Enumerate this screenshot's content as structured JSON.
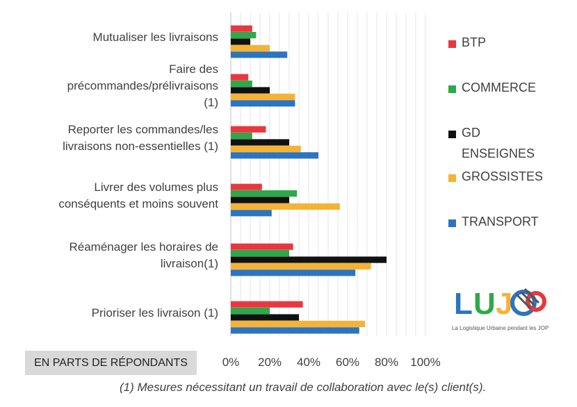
{
  "chart_data": {
    "type": "bar",
    "orientation": "horizontal",
    "categories": [
      "Mutualiser les livraisons",
      "Faire des\nprécommandes/prélivraisons\n(1)",
      "Reporter les commandes/les\nlivraisons non-essentielles (1)",
      "Livrer des volumes plus\nconséquents et moins souvent",
      "Réaménager les horaires de\nlivraison(1)",
      "Prioriser les livraison (1)"
    ],
    "series": [
      {
        "name": "BTP",
        "color": "#e8383d",
        "values": [
          11,
          9,
          18,
          16,
          32,
          37
        ]
      },
      {
        "name": "COMMERCE",
        "color": "#2ea84a",
        "values": [
          13,
          11,
          11,
          34,
          30,
          20
        ]
      },
      {
        "name": "GD\nENSEIGNES",
        "color": "#111111",
        "values": [
          10,
          20,
          30,
          30,
          80,
          35
        ]
      },
      {
        "name": "GROSSISTES",
        "color": "#f5b335",
        "values": [
          20,
          33,
          36,
          56,
          72,
          69
        ]
      },
      {
        "name": "TRANSPORT",
        "color": "#2d74c0",
        "values": [
          29,
          33,
          45,
          21,
          64,
          66
        ]
      }
    ],
    "xlim": [
      0,
      100
    ],
    "xticks": [
      "0%",
      "20%",
      "40%",
      "60%",
      "80%",
      "100%"
    ],
    "grid": true,
    "legend_position": "right"
  },
  "unit_label": "EN PARTS DE RÉPONDANTS",
  "footnote": "(1) Mesures nécessitant un travail de collaboration avec le(s) client(s).",
  "logo": {
    "text": "LUJOP",
    "caption": "La Logistique Urbaine pendant les JOP",
    "colors": [
      "#2d74c0",
      "#f5b335",
      "#e8383d",
      "#2ea84a"
    ]
  }
}
